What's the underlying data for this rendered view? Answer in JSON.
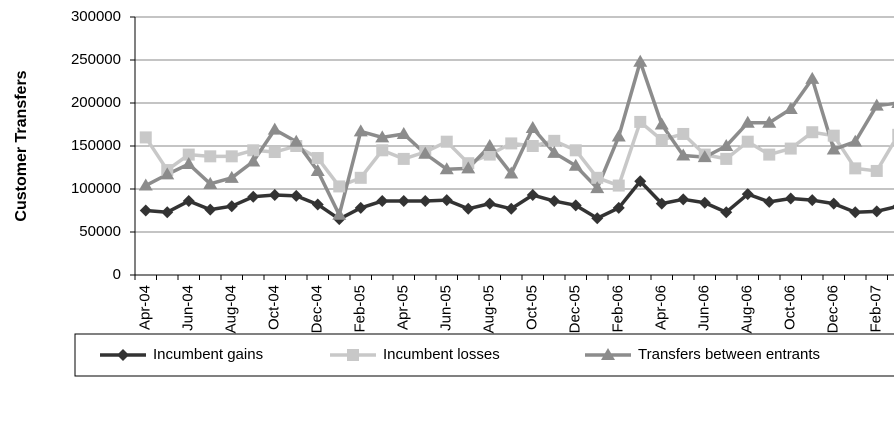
{
  "chart_data": {
    "type": "line",
    "ylabel": "Customer Transfers",
    "categories": [
      "Apr-04",
      null,
      "Jun-04",
      null,
      "Aug-04",
      null,
      "Oct-04",
      null,
      "Dec-04",
      null,
      "Feb-05",
      null,
      "Apr-05",
      null,
      "Jun-05",
      null,
      "Aug-05",
      null,
      "Oct-05",
      null,
      "Dec-05",
      null,
      "Feb-06",
      null,
      "Apr-06",
      null,
      "Jun-06",
      null,
      "Aug-06",
      null,
      "Oct-06",
      null,
      "Dec-06",
      null,
      "Feb-07",
      null
    ],
    "series": [
      {
        "name": "Incumbent gains",
        "color": "#333333",
        "marker": "diamond",
        "values": [
          75000,
          73000,
          86000,
          76000,
          80000,
          91000,
          93000,
          92000,
          82000,
          65000,
          78000,
          86000,
          86000,
          86000,
          87000,
          77000,
          83000,
          77000,
          93000,
          86000,
          81000,
          66000,
          78000,
          109000,
          83000,
          88000,
          84000,
          73000,
          94000,
          85000,
          89000,
          87000,
          83000,
          73000,
          74000,
          80000
        ]
      },
      {
        "name": "Incumbent losses",
        "color": "#c8c8c8",
        "marker": "square",
        "values": [
          160000,
          122000,
          140000,
          138000,
          138000,
          145000,
          143000,
          150000,
          136000,
          103000,
          113000,
          145000,
          135000,
          143000,
          155000,
          130000,
          140000,
          153000,
          150000,
          156000,
          145000,
          113000,
          104000,
          178000,
          157000,
          164000,
          140000,
          135000,
          155000,
          140000,
          147000,
          166000,
          162000,
          124000,
          121000,
          163000
        ]
      },
      {
        "name": "Transfers between entrants",
        "color": "#8c8c8c",
        "marker": "triangle",
        "values": [
          104000,
          117000,
          129000,
          106000,
          113000,
          132000,
          169000,
          155000,
          121000,
          70000,
          167000,
          160000,
          164000,
          141000,
          123000,
          124000,
          150000,
          118000,
          171000,
          142000,
          127000,
          101000,
          161000,
          248000,
          175000,
          139000,
          137000,
          150000,
          177000,
          177000,
          193000,
          228000,
          146000,
          155000,
          197000,
          200000
        ]
      }
    ],
    "ylim": [
      0,
      300000
    ],
    "yticks": [
      0,
      50000,
      100000,
      150000,
      200000,
      250000,
      300000
    ],
    "grid": true,
    "legend": "bottom"
  }
}
